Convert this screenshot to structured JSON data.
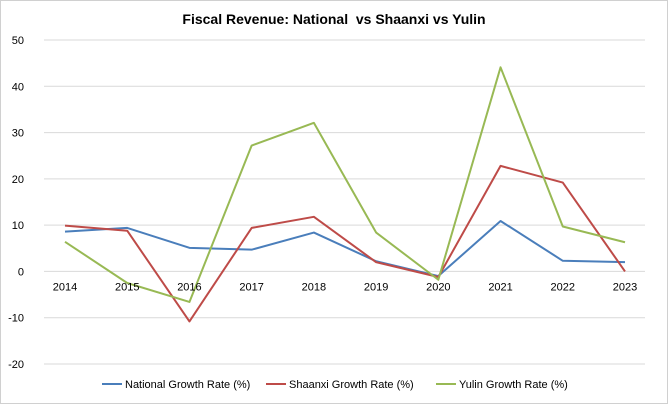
{
  "chart_data": {
    "type": "line",
    "title": "Fiscal Revenue: National  vs Shaanxi vs Yulin",
    "xlabel": "",
    "ylabel": "",
    "categories": [
      "2014",
      "2015",
      "2016",
      "2017",
      "2018",
      "2019",
      "2020",
      "2021",
      "2022",
      "2023"
    ],
    "y_ticks": [
      "50",
      "40",
      "30",
      "20",
      "10",
      "0",
      "-10",
      "-20"
    ],
    "ylim": [
      -20,
      50
    ],
    "grid": true,
    "legend_position": "bottom",
    "series": [
      {
        "name": "National Growth Rate (%)",
        "color": "#4a7ebb",
        "values": [
          8.6,
          9.4,
          5.1,
          4.7,
          8.4,
          2.2,
          -1.0,
          10.9,
          2.3,
          2.0
        ]
      },
      {
        "name": "Shaanxi Growth Rate (%)",
        "color": "#be4b48",
        "values": [
          9.9,
          8.8,
          -10.8,
          9.4,
          11.8,
          2.0,
          -1.2,
          22.8,
          19.2,
          0.0
        ]
      },
      {
        "name": "Yulin Growth Rate (%)",
        "color": "#98b954",
        "values": [
          6.4,
          -2.5,
          -6.6,
          27.2,
          32.1,
          8.4,
          -1.8,
          44.1,
          9.7,
          6.3
        ]
      }
    ]
  }
}
